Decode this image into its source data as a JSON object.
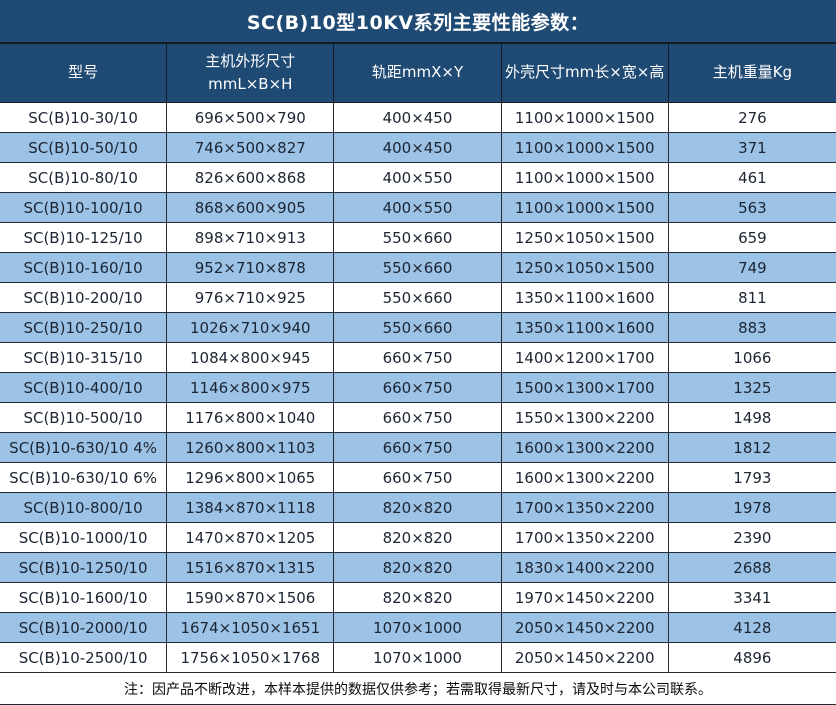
{
  "page": {
    "title": "SC(B)10型10KV系列主要性能参数："
  },
  "table": {
    "columns": [
      {
        "label": "型号"
      },
      {
        "label": "主机外形尺寸",
        "label_line2": "mmL×B×H"
      },
      {
        "label": "轨距mmX×Y"
      },
      {
        "label": "外壳尺寸mm长×宽×高"
      },
      {
        "label": "主机重量Kg"
      }
    ],
    "rows": [
      [
        "SC(B)10-30/10",
        "696×500×790",
        "400×450",
        "1100×1000×1500",
        "276"
      ],
      [
        "SC(B)10-50/10",
        "746×500×827",
        "400×450",
        "1100×1000×1500",
        "371"
      ],
      [
        "SC(B)10-80/10",
        "826×600×868",
        "400×550",
        "1100×1000×1500",
        "461"
      ],
      [
        "SC(B)10-100/10",
        "868×600×905",
        "400×550",
        "1100×1000×1500",
        "563"
      ],
      [
        "SC(B)10-125/10",
        "898×710×913",
        "550×660",
        "1250×1050×1500",
        "659"
      ],
      [
        "SC(B)10-160/10",
        "952×710×878",
        "550×660",
        "1250×1050×1500",
        "749"
      ],
      [
        "SC(B)10-200/10",
        "976×710×925",
        "550×660",
        "1350×1100×1600",
        "811"
      ],
      [
        "SC(B)10-250/10",
        "1026×710×940",
        "550×660",
        "1350×1100×1600",
        "883"
      ],
      [
        "SC(B)10-315/10",
        "1084×800×945",
        "660×750",
        "1400×1200×1700",
        "1066"
      ],
      [
        "SC(B)10-400/10",
        "1146×800×975",
        "660×750",
        "1500×1300×1700",
        "1325"
      ],
      [
        "SC(B)10-500/10",
        "1176×800×1040",
        "660×750",
        "1550×1300×2200",
        "1498"
      ],
      [
        "SC(B)10-630/10 4%",
        "1260×800×1103",
        "660×750",
        "1600×1300×2200",
        "1812"
      ],
      [
        "SC(B)10-630/10 6%",
        "1296×800×1065",
        "660×750",
        "1600×1300×2200",
        "1793"
      ],
      [
        "SC(B)10-800/10",
        "1384×870×1118",
        "820×820",
        "1700×1350×2200",
        "1978"
      ],
      [
        "SC(B)10-1000/10",
        "1470×870×1205",
        "820×820",
        "1700×1350×2200",
        "2390"
      ],
      [
        "SC(B)10-1250/10",
        "1516×870×1315",
        "820×820",
        "1830×1400×2200",
        "2688"
      ],
      [
        "SC(B)10-1600/10",
        "1590×870×1506",
        "820×820",
        "1970×1450×2200",
        "3341"
      ],
      [
        "SC(B)10-2000/10",
        "1674×1050×1651",
        "1070×1000",
        "2050×1450×2200",
        "4128"
      ],
      [
        "SC(B)10-2500/10",
        "1756×1050×1768",
        "1070×1000",
        "2050×1450×2200",
        "4896"
      ]
    ]
  },
  "note": "注：因产品不断改进，本样本提供的数据仅供参考；若需取得最新尺寸，请及时与本公司联系。",
  "colors": {
    "header_bg": "#1F4A73",
    "row_alt_bg": "#9CC2E6",
    "border": "#232A33",
    "text": "#1C2533"
  }
}
